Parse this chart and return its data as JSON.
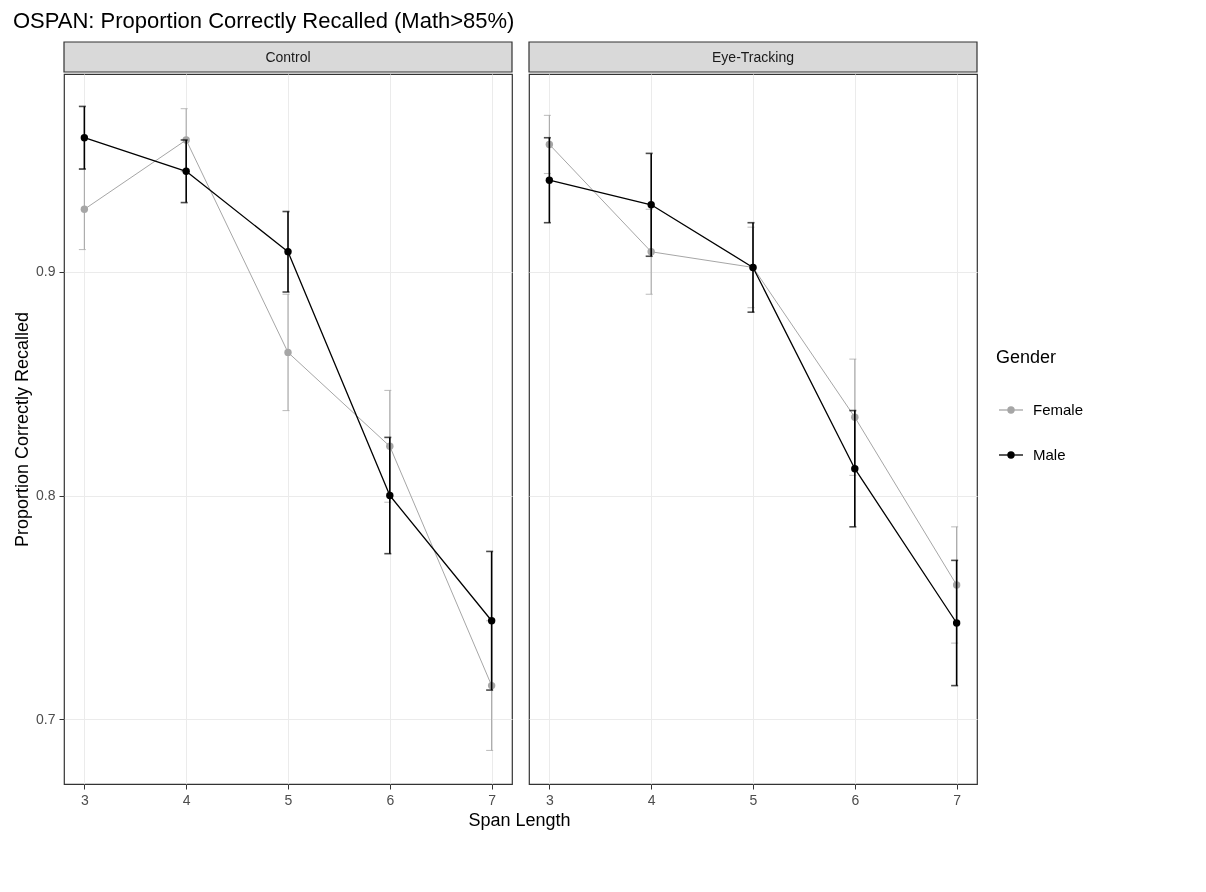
{
  "chart_data": [
    {
      "type": "line",
      "title": "OSPAN: Proportion Correctly Recalled (Math>85%)",
      "subtitle": "Control",
      "xlabel": "Span Length",
      "ylabel": "Proportion Correctly Recalled",
      "x": [
        3,
        4,
        5,
        6,
        7
      ],
      "series": [
        {
          "color": "#a6a6a6",
          "values": [
            0.928,
            0.959,
            0.864,
            0.822,
            0.715
          ],
          "errors": [
            0.018,
            0.014,
            0.026,
            0.025,
            0.029
          ]
        },
        {
          "color": "#000000",
          "values": [
            0.96,
            0.945,
            0.909,
            0.8,
            0.744
          ],
          "errors": [
            0.014,
            0.014,
            0.018,
            0.026,
            0.031
          ]
        }
      ],
      "xlim": [
        2.8,
        7.2
      ],
      "xticks": [
        3,
        4,
        5,
        6,
        7
      ],
      "ylim": [
        0.671,
        0.9885
      ],
      "yticks": [
        0.7,
        0.8,
        0.9
      ],
      "grid": true,
      "marker": "circle"
    },
    {
      "type": "line",
      "subtitle": "Eye-Tracking",
      "legend_title": "Gender",
      "x": [
        3,
        4,
        5,
        6,
        7
      ],
      "series": [
        {
          "name": "Female",
          "color": "#a6a6a6",
          "values": [
            0.957,
            0.909,
            0.902,
            0.835,
            0.76
          ],
          "errors": [
            0.013,
            0.019,
            0.018,
            0.026,
            0.026
          ]
        },
        {
          "name": "Male",
          "color": "#000000",
          "values": [
            0.941,
            0.93,
            0.902,
            0.812,
            0.743
          ],
          "errors": [
            0.019,
            0.023,
            0.02,
            0.026,
            0.028
          ]
        }
      ],
      "xlim": [
        2.8,
        7.2
      ],
      "xticks": [
        3,
        4,
        5,
        6,
        7
      ],
      "ylim": [
        0.671,
        0.9885
      ],
      "yticks": [
        0.7,
        0.8,
        0.9
      ],
      "grid": true,
      "marker": "circle",
      "legend": "right",
      "tick_labels": "x"
    }
  ]
}
